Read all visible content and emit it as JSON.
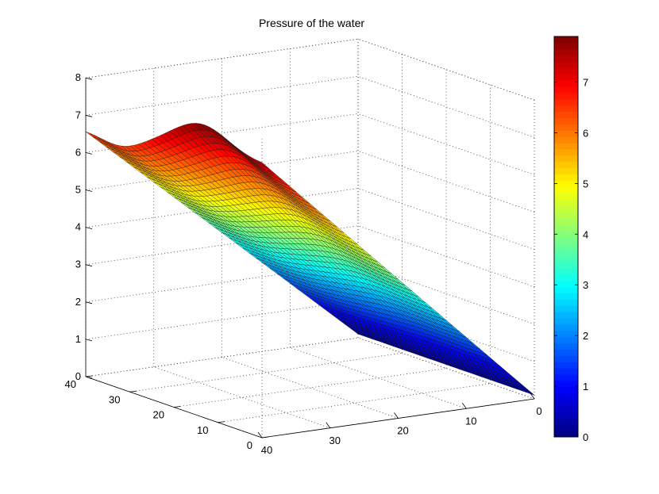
{
  "chart_data": {
    "type": "surface",
    "title": "Pressure of the water",
    "x_axis": {
      "ticks": [
        0,
        10,
        20,
        30,
        40
      ],
      "range": [
        0,
        40
      ]
    },
    "y_axis": {
      "ticks": [
        0,
        10,
        20,
        30,
        40
      ],
      "range": [
        0,
        40
      ]
    },
    "z_axis": {
      "ticks": [
        0,
        1,
        2,
        3,
        4,
        5,
        6,
        7,
        8
      ],
      "range": [
        0,
        8
      ]
    },
    "grid": true,
    "colormap": "jet",
    "colorbar": {
      "ticks": [
        0,
        1,
        2,
        3,
        4,
        5,
        6,
        7
      ],
      "range": [
        0,
        7.9
      ],
      "placement": "right"
    },
    "surface": {
      "grid_size": 40,
      "corner_values": {
        "x0_y0": 7.3,
        "x0_y40": 6.6,
        "x40_y0": 0.1,
        "x40_y40": 0.1
      },
      "peak_value": 7.9
    }
  }
}
